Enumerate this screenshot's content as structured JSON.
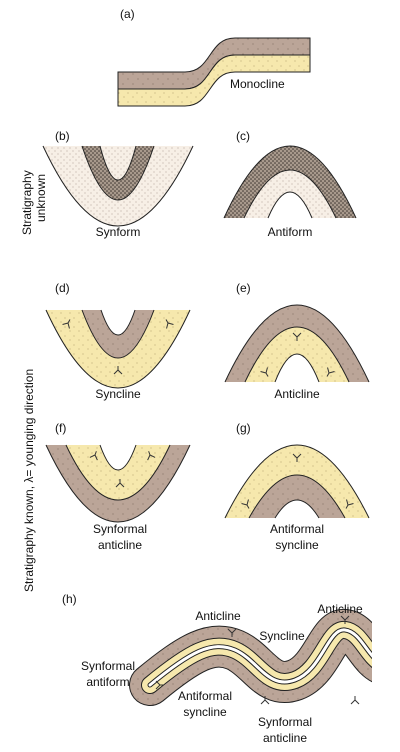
{
  "panel_a": {
    "tag": "(a)",
    "label": [
      "Monocline"
    ]
  },
  "panel_b": {
    "tag": "(b)",
    "label": [
      "Synform"
    ]
  },
  "panel_c": {
    "tag": "(c)",
    "label": [
      "Antiform"
    ]
  },
  "panel_d": {
    "tag": "(d)",
    "label": [
      "Syncline"
    ]
  },
  "panel_e": {
    "tag": "(e)",
    "label": [
      "Anticline"
    ]
  },
  "panel_f": {
    "tag": "(f)",
    "label": [
      "Synformal",
      "anticline"
    ]
  },
  "panel_g": {
    "tag": "(g)",
    "label": [
      "Antiformal",
      "syncline"
    ]
  },
  "panel_h": {
    "tag": "(h)",
    "labels": [
      [
        "Anticline"
      ],
      [
        "Syncline"
      ],
      [
        "Anticline"
      ],
      [
        "Synformal",
        "antiform"
      ],
      [
        "Antiformal",
        "syncline"
      ],
      [
        "Synformal",
        "anticline"
      ]
    ]
  },
  "side_labels": {
    "unknown": [
      "Stratigraphy",
      "unknown"
    ],
    "known": "Stratigraphy known, λ= younging direction"
  }
}
